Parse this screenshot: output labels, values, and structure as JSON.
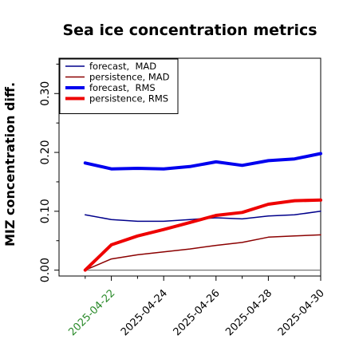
{
  "chart_data": {
    "type": "line",
    "title": "Sea ice concentration metrics",
    "ylabel": "MIZ concentration diff.",
    "xlabel": "",
    "x": [
      "2025-04-21",
      "2025-04-22",
      "2025-04-23",
      "2025-04-24",
      "2025-04-25",
      "2025-04-26",
      "2025-04-27",
      "2025-04-28",
      "2025-04-29",
      "2025-04-30"
    ],
    "xticks": [
      "2025-04-22",
      "2025-04-24",
      "2025-04-26",
      "2025-04-28",
      "2025-04-30"
    ],
    "xlim": [
      "2025-04-20",
      "2025-04-30"
    ],
    "yticks": [
      0.0,
      0.1,
      0.2,
      0.3
    ],
    "ytick_labels": [
      "0.00",
      "0.10",
      "0.20",
      "0.30"
    ],
    "ylim": [
      -0.01,
      0.36
    ],
    "grid": false,
    "legend_position": "top-left",
    "baseline": 0.0,
    "series": [
      {
        "name": "forecast,  MAD",
        "color": "#00008b",
        "width": "thin",
        "values": [
          0.094,
          0.086,
          0.083,
          0.083,
          0.086,
          0.089,
          0.087,
          0.092,
          0.094,
          0.1
        ]
      },
      {
        "name": "persistence, MAD",
        "color": "#8b0000",
        "width": "thin",
        "values": [
          0.0,
          0.019,
          0.026,
          0.031,
          0.036,
          0.042,
          0.047,
          0.056,
          0.058,
          0.06
        ]
      },
      {
        "name": "forecast,  RMS",
        "color": "#0000ee",
        "width": "thick",
        "values": [
          0.182,
          0.172,
          0.173,
          0.172,
          0.176,
          0.184,
          0.178,
          0.186,
          0.189,
          0.198
        ]
      },
      {
        "name": "persistence, RMS",
        "color": "#ee0000",
        "width": "thick",
        "values": [
          0.0,
          0.043,
          0.058,
          0.069,
          0.081,
          0.093,
          0.098,
          0.112,
          0.118,
          0.119
        ]
      }
    ],
    "tick_label_colors": {
      "2025-04-22": "#2a8a2a",
      "default": "#000000"
    }
  }
}
